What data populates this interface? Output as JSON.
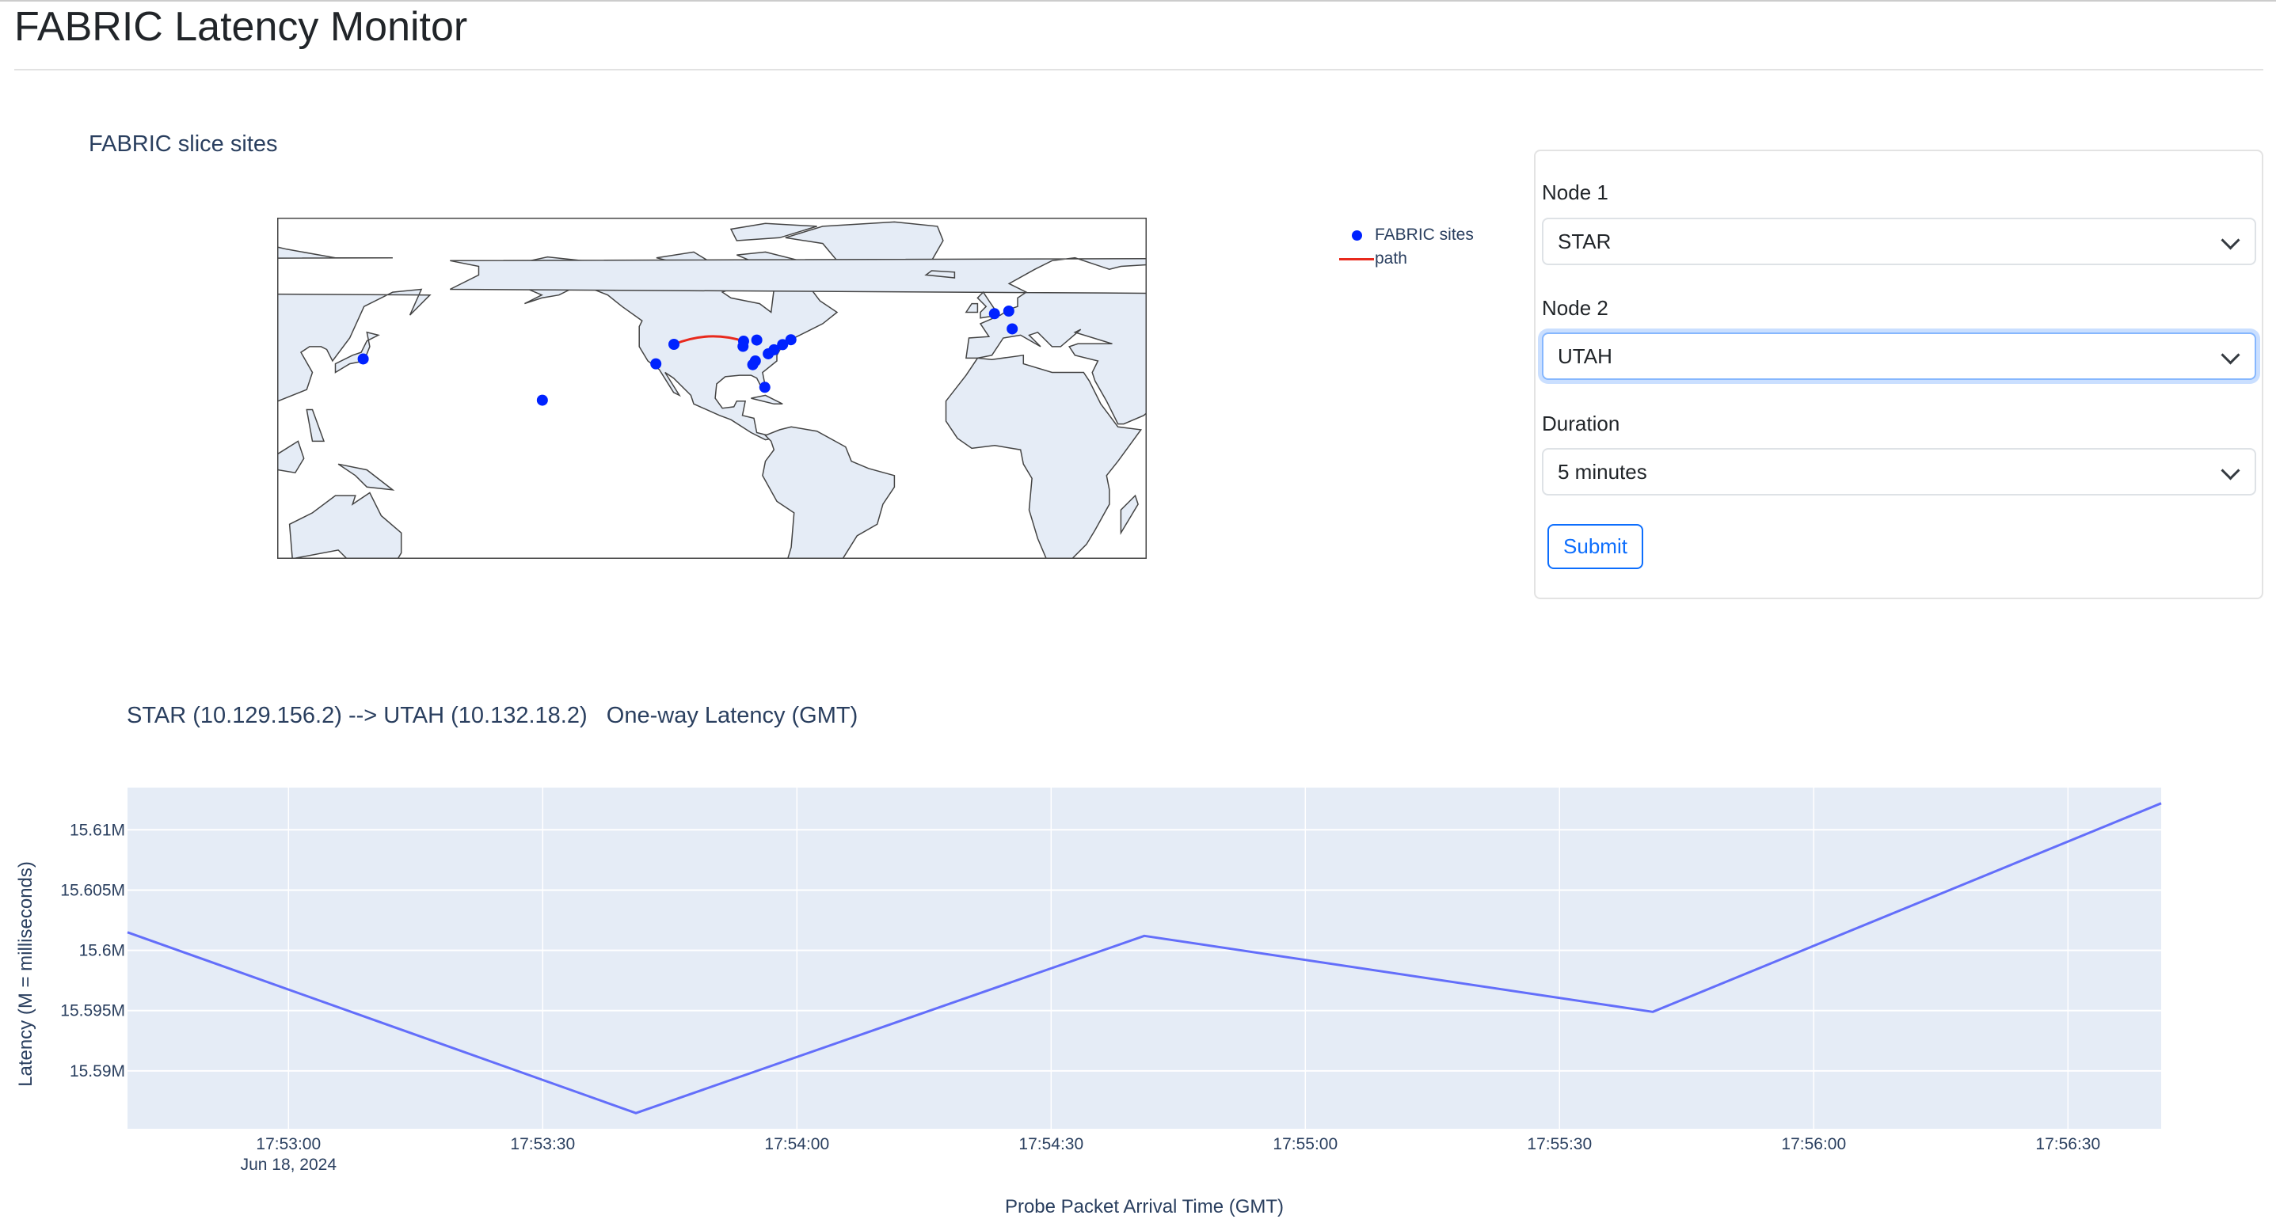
{
  "page": {
    "title": "FABRIC Latency Monitor"
  },
  "map": {
    "title": "FABRIC slice sites",
    "legend": [
      {
        "name": "FABRIC sites",
        "color": "#0022ff",
        "type": "marker"
      },
      {
        "name": "path",
        "color": "#e8291c",
        "type": "line"
      }
    ],
    "land_color": "#e5ecf6",
    "sites": [
      {
        "lon": 139.7,
        "lat": 35.7
      },
      {
        "lon": -157.8,
        "lat": 21.3
      },
      {
        "lon": -118.2,
        "lat": 34.0
      },
      {
        "lon": -111.9,
        "lat": 40.8
      },
      {
        "lon": -87.6,
        "lat": 41.9
      },
      {
        "lon": -87.8,
        "lat": 40.1
      },
      {
        "lon": -83.0,
        "lat": 42.3
      },
      {
        "lon": -77.0,
        "lat": 38.9
      },
      {
        "lon": -74.0,
        "lat": 40.7
      },
      {
        "lon": -71.1,
        "lat": 42.4
      },
      {
        "lon": -84.4,
        "lat": 33.7
      },
      {
        "lon": -83.5,
        "lat": 35.0
      },
      {
        "lon": -80.2,
        "lat": 25.8
      },
      {
        "lon": -79.0,
        "lat": 37.5
      },
      {
        "lon": -0.1,
        "lat": 51.5
      },
      {
        "lon": 4.9,
        "lat": 52.4
      },
      {
        "lon": 6.1,
        "lat": 46.2
      }
    ],
    "path": [
      {
        "lon": -111.9,
        "lat": 40.8
      },
      {
        "lon": -87.6,
        "lat": 41.9
      }
    ]
  },
  "form": {
    "node1": {
      "label": "Node 1",
      "value": "STAR"
    },
    "node2": {
      "label": "Node 2",
      "value": "UTAH"
    },
    "duration": {
      "label": "Duration",
      "value": "5 minutes"
    },
    "submit_label": "Submit"
  },
  "chart_data": {
    "type": "line",
    "title": "STAR (10.129.156.2) --> UTAH (10.132.18.2)   One-way Latency (GMT)",
    "xlabel": "Probe Packet Arrival Time (GMT)",
    "ylabel": "Latency (M = milliseconds)",
    "x_date_label": "Jun 18, 2024",
    "x": [
      "17:52:41",
      "17:53:41",
      "17:54:41",
      "17:55:41",
      "17:56:41"
    ],
    "values": [
      15.6015,
      15.5865,
      15.6012,
      15.5949,
      15.6122
    ],
    "xlim": [
      "17:52:41",
      "17:56:41"
    ],
    "ylim": [
      15.5852,
      15.6135
    ],
    "x_ticks": [
      "17:53:00",
      "17:53:30",
      "17:54:00",
      "17:54:30",
      "17:55:00",
      "17:55:30",
      "17:56:00",
      "17:56:30"
    ],
    "y_ticks": [
      {
        "value": 15.59,
        "label": "15.59M"
      },
      {
        "value": 15.595,
        "label": "15.595M"
      },
      {
        "value": 15.6,
        "label": "15.6M"
      },
      {
        "value": 15.605,
        "label": "15.605M"
      },
      {
        "value": 15.61,
        "label": "15.61M"
      }
    ],
    "line_color": "#636efa",
    "plot_bg": "#e5ecf6",
    "grid": true
  }
}
